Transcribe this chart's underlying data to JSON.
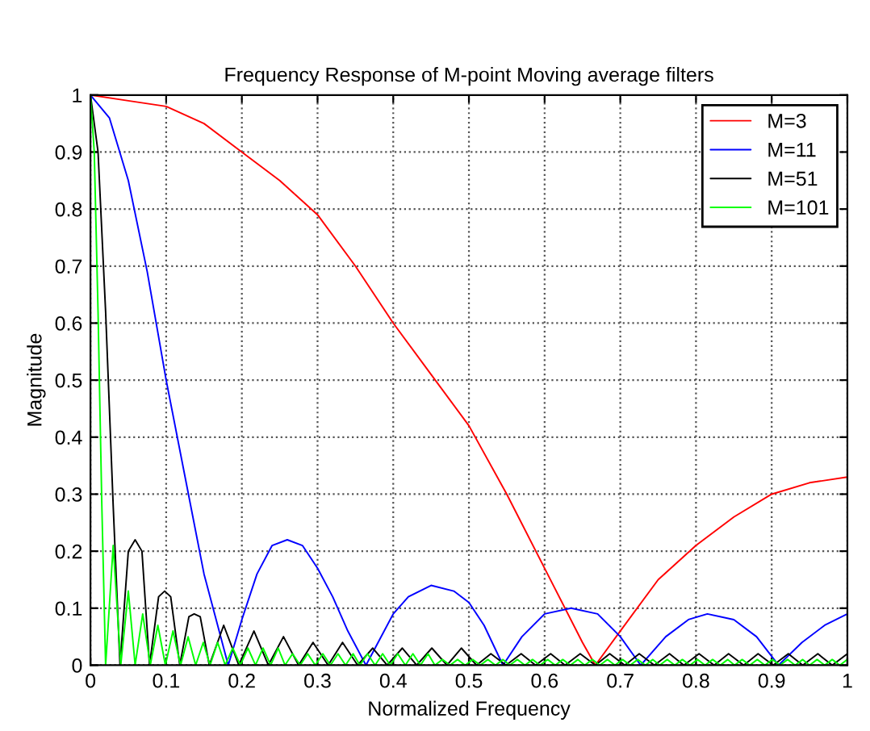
{
  "chart_data": {
    "type": "line",
    "title": "Frequency Response of M-point Moving average filters",
    "xlabel": "Normalized Frequency",
    "ylabel": "Magnitude",
    "xlim": [
      0,
      1
    ],
    "ylim": [
      0,
      1
    ],
    "xticks": [
      0,
      0.1,
      0.2,
      0.3,
      0.4,
      0.5,
      0.6,
      0.7,
      0.8,
      0.9,
      1
    ],
    "yticks": [
      0,
      0.1,
      0.2,
      0.3,
      0.4,
      0.5,
      0.6,
      0.7,
      0.8,
      0.9,
      1
    ],
    "grid": true,
    "legend": "top right",
    "line_style": "solid",
    "marker": "none",
    "series": [
      {
        "name": "M=3",
        "color": "#ff0000",
        "x": [
          0,
          0.05,
          0.1,
          0.15,
          0.2,
          0.25,
          0.3,
          0.35,
          0.4,
          0.45,
          0.5,
          0.55,
          0.6,
          0.65,
          0.667,
          0.7,
          0.75,
          0.8,
          0.85,
          0.9,
          0.95,
          1
        ],
        "values": [
          1,
          0.99,
          0.98,
          0.95,
          0.9,
          0.85,
          0.79,
          0.7,
          0.6,
          0.51,
          0.42,
          0.3,
          0.17,
          0.04,
          0,
          0.06,
          0.15,
          0.21,
          0.26,
          0.3,
          0.32,
          0.33
        ]
      },
      {
        "name": "M=11",
        "color": "#0000ff",
        "x": [
          0,
          0.025,
          0.05,
          0.075,
          0.1,
          0.125,
          0.15,
          0.182,
          0.2,
          0.22,
          0.24,
          0.26,
          0.28,
          0.3,
          0.32,
          0.34,
          0.364,
          0.38,
          0.4,
          0.42,
          0.45,
          0.48,
          0.5,
          0.52,
          0.545,
          0.57,
          0.6,
          0.635,
          0.67,
          0.7,
          0.727,
          0.76,
          0.79,
          0.815,
          0.85,
          0.88,
          0.909,
          0.94,
          0.97,
          1
        ],
        "values": [
          1,
          0.96,
          0.85,
          0.69,
          0.5,
          0.33,
          0.16,
          0,
          0.08,
          0.16,
          0.21,
          0.22,
          0.21,
          0.17,
          0.12,
          0.06,
          0,
          0.04,
          0.09,
          0.12,
          0.14,
          0.13,
          0.11,
          0.07,
          0,
          0.05,
          0.09,
          0.1,
          0.09,
          0.05,
          0,
          0.05,
          0.08,
          0.09,
          0.08,
          0.05,
          0,
          0.04,
          0.07,
          0.09
        ]
      },
      {
        "name": "M=51",
        "color": "#000000",
        "x": [
          0,
          0.01,
          0.02,
          0.03,
          0.039,
          0.05,
          0.059,
          0.068,
          0.078,
          0.09,
          0.098,
          0.106,
          0.118,
          0.13,
          0.137,
          0.145,
          0.157,
          0.176,
          0.196,
          0.216,
          0.235,
          0.255,
          0.275,
          0.294,
          0.314,
          0.333,
          0.353,
          0.373,
          0.392,
          0.412,
          0.431,
          0.451,
          0.471,
          0.49,
          0.51,
          0.529,
          0.549,
          0.569,
          0.588,
          0.608,
          0.627,
          0.647,
          0.667,
          0.686,
          0.706,
          0.725,
          0.745,
          0.765,
          0.784,
          0.804,
          0.824,
          0.843,
          0.863,
          0.882,
          0.902,
          0.922,
          0.941,
          0.961,
          0.98,
          1.0
        ],
        "values": [
          1,
          0.9,
          0.62,
          0.28,
          0,
          0.2,
          0.22,
          0.2,
          0,
          0.12,
          0.13,
          0.12,
          0,
          0.085,
          0.09,
          0.085,
          0,
          0.07,
          0,
          0.06,
          0,
          0.05,
          0,
          0.04,
          0,
          0.04,
          0,
          0.03,
          0,
          0.03,
          0,
          0.03,
          0,
          0.03,
          0,
          0.02,
          0,
          0.02,
          0,
          0.02,
          0,
          0.02,
          0,
          0.02,
          0,
          0.02,
          0,
          0.02,
          0,
          0.02,
          0,
          0.02,
          0,
          0.02,
          0,
          0.02,
          0,
          0.02,
          0,
          0.02
        ]
      },
      {
        "name": "M=101",
        "color": "#00ff00",
        "x": [
          0,
          0.005,
          0.01,
          0.015,
          0.02,
          0.03,
          0.04,
          0.05,
          0.059,
          0.069,
          0.079,
          0.089,
          0.099,
          0.109,
          0.119,
          0.129,
          0.139,
          0.149,
          0.158,
          0.168,
          0.178,
          0.188,
          0.198,
          0.208,
          0.218,
          0.228,
          0.238,
          0.248,
          0.257,
          0.267,
          0.277,
          0.287,
          0.297,
          0.307,
          0.317,
          0.327,
          0.337,
          0.347,
          0.356,
          0.366,
          0.376,
          0.386,
          0.396,
          0.406,
          0.416,
          0.426,
          0.436,
          0.446,
          0.455,
          0.465,
          0.475,
          0.485,
          0.495,
          0.505,
          0.515,
          0.525,
          0.535,
          0.545,
          0.554,
          0.564,
          0.574,
          0.584,
          0.594,
          0.604,
          0.614,
          0.624,
          0.634,
          0.644,
          0.653,
          0.663,
          0.673,
          0.683,
          0.693,
          0.703,
          0.713,
          0.723,
          0.733,
          0.743,
          0.752,
          0.762,
          0.772,
          0.782,
          0.792,
          0.802,
          0.812,
          0.822,
          0.832,
          0.842,
          0.851,
          0.861,
          0.871,
          0.881,
          0.891,
          0.901,
          0.911,
          0.921,
          0.931,
          0.941,
          0.95,
          0.96,
          0.97,
          0.98,
          0.99,
          1.0
        ],
        "values": [
          1,
          0.9,
          0.62,
          0.28,
          0,
          0.21,
          0,
          0.13,
          0,
          0.09,
          0,
          0.07,
          0,
          0.06,
          0,
          0.05,
          0,
          0.04,
          0,
          0.04,
          0,
          0.03,
          0,
          0.03,
          0,
          0.03,
          0,
          0.03,
          0,
          0.02,
          0,
          0.02,
          0,
          0.02,
          0,
          0.02,
          0,
          0.02,
          0,
          0.02,
          0,
          0.02,
          0,
          0.02,
          0,
          0.02,
          0,
          0.02,
          0,
          0.01,
          0,
          0.01,
          0,
          0.01,
          0,
          0.01,
          0,
          0.01,
          0,
          0.01,
          0,
          0.01,
          0,
          0.01,
          0,
          0.01,
          0,
          0.01,
          0,
          0.01,
          0,
          0.01,
          0,
          0.01,
          0,
          0.01,
          0,
          0.01,
          0,
          0.01,
          0,
          0.01,
          0,
          0.01,
          0,
          0.01,
          0,
          0.01,
          0,
          0.01,
          0,
          0.01,
          0,
          0.01,
          0,
          0.01,
          0,
          0.01,
          0,
          0.01,
          0,
          0.01,
          0,
          0.01
        ]
      }
    ]
  }
}
